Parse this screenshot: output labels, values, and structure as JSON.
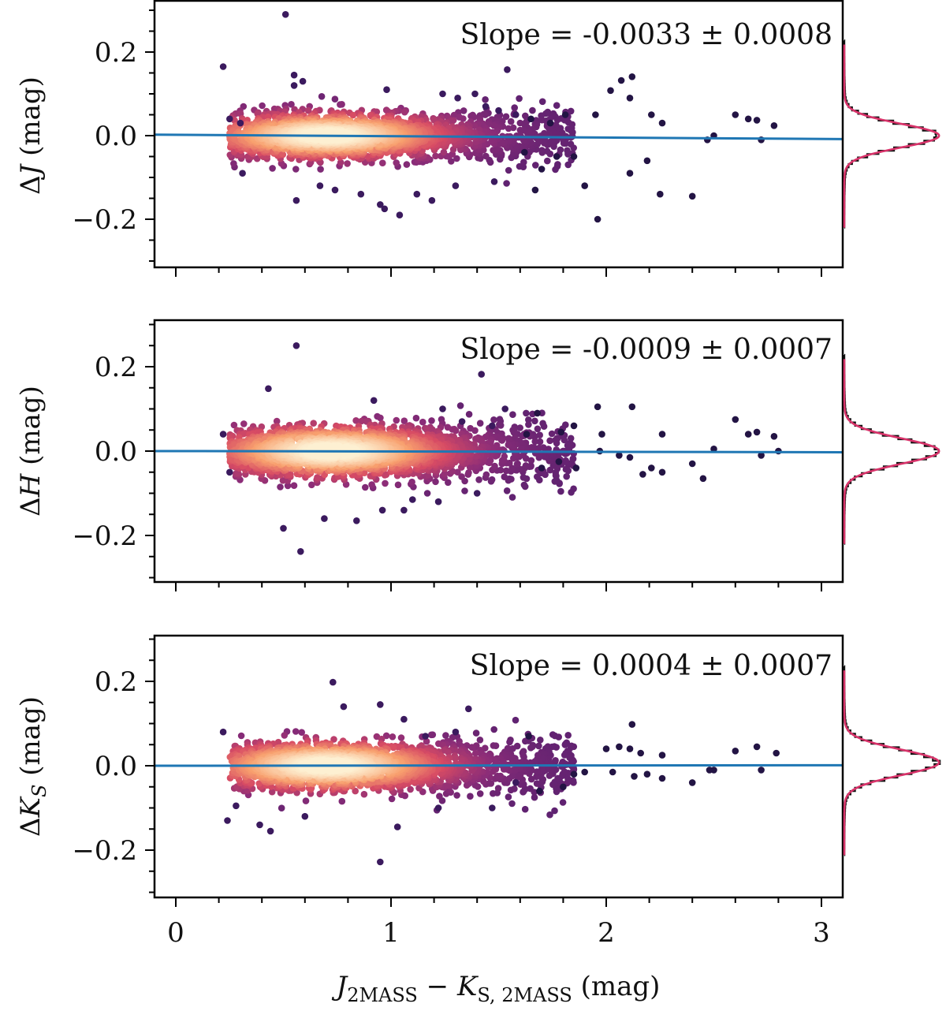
{
  "chart_data": [
    {
      "type": "scatter",
      "panel": "top",
      "ylabel": {
        "prefix": "Δ",
        "var": "J",
        "suffix": " (mag)"
      },
      "annotation": "Slope = -0.0033 ± 0.0008",
      "fit": {
        "slope": -0.0033,
        "intercept": 0.002
      },
      "xlim": [
        -0.1,
        3.1
      ],
      "ylim": [
        -0.32,
        0.32
      ],
      "yticks": [
        0.2,
        0.0,
        -0.2
      ],
      "yticklabels": [
        "0.2",
        "0.0",
        "−0.2"
      ],
      "density": {
        "core_center_x": 0.7,
        "core_sigma_y": 0.025,
        "x_min": 0.22,
        "x_max": 2.8
      },
      "points": [
        [
          0.51,
          0.29
        ],
        [
          0.22,
          0.165
        ],
        [
          0.55,
          0.145
        ],
        [
          0.55,
          0.12
        ],
        [
          0.59,
          0.13
        ],
        [
          1.54,
          0.158
        ],
        [
          2.12,
          0.141
        ],
        [
          2.07,
          0.132
        ],
        [
          2.02,
          0.108
        ],
        [
          2.11,
          0.09
        ],
        [
          1.95,
          0.05
        ],
        [
          2.21,
          0.05
        ],
        [
          2.26,
          0.03
        ],
        [
          2.6,
          0.05
        ],
        [
          2.66,
          0.04
        ],
        [
          2.7,
          0.037
        ],
        [
          2.78,
          0.024
        ],
        [
          2.5,
          0.0
        ],
        [
          2.47,
          -0.01
        ],
        [
          2.72,
          -0.01
        ],
        [
          2.19,
          -0.06
        ],
        [
          2.25,
          -0.14
        ],
        [
          2.4,
          -0.145
        ],
        [
          1.96,
          -0.2
        ],
        [
          2.11,
          -0.09
        ],
        [
          1.9,
          -0.12
        ],
        [
          1.85,
          -0.05
        ],
        [
          1.77,
          -0.05
        ],
        [
          1.7,
          -0.08
        ],
        [
          1.62,
          -0.04
        ],
        [
          1.74,
          0.03
        ],
        [
          1.81,
          0.05
        ],
        [
          1.65,
          0.04
        ],
        [
          1.58,
          0.05
        ],
        [
          1.5,
          0.06
        ],
        [
          1.39,
          0.1
        ],
        [
          1.44,
          0.07
        ],
        [
          1.04,
          -0.19
        ],
        [
          0.95,
          -0.165
        ],
        [
          0.97,
          -0.175
        ],
        [
          0.86,
          -0.14
        ],
        [
          1.12,
          -0.14
        ],
        [
          1.19,
          -0.155
        ],
        [
          1.3,
          -0.12
        ],
        [
          1.48,
          -0.11
        ],
        [
          0.56,
          -0.155
        ],
        [
          0.67,
          -0.12
        ],
        [
          0.74,
          -0.13
        ],
        [
          0.31,
          -0.09
        ],
        [
          0.3,
          0.03
        ],
        [
          0.25,
          0.04
        ],
        [
          1.67,
          -0.13
        ],
        [
          1.24,
          0.1
        ],
        [
          1.31,
          0.09
        ],
        [
          0.98,
          0.11
        ]
      ],
      "hist": {
        "center": 0.0,
        "sigma": 0.028,
        "halfwidth": 0.22
      }
    },
    {
      "type": "scatter",
      "panel": "middle",
      "ylabel": {
        "prefix": "Δ",
        "var": "H",
        "suffix": " (mag)"
      },
      "annotation": "Slope = -0.0009 ± 0.0007",
      "fit": {
        "slope": -0.0009,
        "intercept": 0.0
      },
      "xlim": [
        -0.1,
        3.1
      ],
      "ylim": [
        -0.32,
        0.32
      ],
      "yticks": [
        0.2,
        0.0,
        -0.2
      ],
      "yticklabels": [
        "0.2",
        "0.0",
        "−0.2"
      ],
      "density": {
        "core_center_x": 0.72,
        "core_sigma_y": 0.028,
        "x_min": 0.22,
        "x_max": 2.8
      },
      "points": [
        [
          0.56,
          0.25
        ],
        [
          1.42,
          0.182
        ],
        [
          0.43,
          0.148
        ],
        [
          2.12,
          0.105
        ],
        [
          1.96,
          0.105
        ],
        [
          1.68,
          0.09
        ],
        [
          1.53,
          0.1
        ],
        [
          2.26,
          0.04
        ],
        [
          2.6,
          0.075
        ],
        [
          2.66,
          0.04
        ],
        [
          2.7,
          0.045
        ],
        [
          2.78,
          0.035
        ],
        [
          2.5,
          0.005
        ],
        [
          2.4,
          -0.03
        ],
        [
          2.45,
          -0.065
        ],
        [
          2.72,
          -0.01
        ],
        [
          2.21,
          -0.04
        ],
        [
          2.17,
          -0.055
        ],
        [
          2.26,
          -0.05
        ],
        [
          2.11,
          -0.015
        ],
        [
          2.06,
          -0.01
        ],
        [
          1.97,
          0.0
        ],
        [
          1.98,
          0.04
        ],
        [
          1.85,
          0.06
        ],
        [
          1.79,
          0.045
        ],
        [
          1.86,
          -0.04
        ],
        [
          1.78,
          -0.025
        ],
        [
          1.7,
          -0.04
        ],
        [
          1.63,
          0.04
        ],
        [
          0.58,
          -0.238
        ],
        [
          0.5,
          -0.183
        ],
        [
          0.69,
          -0.16
        ],
        [
          0.84,
          -0.165
        ],
        [
          0.96,
          -0.14
        ],
        [
          1.06,
          -0.14
        ],
        [
          1.1,
          -0.115
        ],
        [
          1.4,
          -0.1
        ],
        [
          1.22,
          -0.12
        ],
        [
          0.25,
          -0.05
        ],
        [
          0.22,
          0.04
        ],
        [
          1.24,
          0.1
        ],
        [
          0.92,
          0.12
        ],
        [
          1.33,
          0.07
        ],
        [
          1.47,
          0.06
        ],
        [
          2.8,
          0.0
        ]
      ],
      "hist": {
        "center": 0.0,
        "sigma": 0.03,
        "halfwidth": 0.22
      }
    },
    {
      "type": "scatter",
      "panel": "bottom",
      "ylabel": {
        "prefix": "Δ",
        "var": "K",
        "sub": "S",
        "suffix": " (mag)"
      },
      "annotation": "Slope = 0.0004 ± 0.0007",
      "fit": {
        "slope": 0.0004,
        "intercept": 0.0
      },
      "xlim": [
        -0.1,
        3.1
      ],
      "ylim": [
        -0.32,
        0.32
      ],
      "yticks": [
        0.2,
        0.0,
        -0.2
      ],
      "yticklabels": [
        "0.2",
        "0.0",
        "−0.2"
      ],
      "xticks": [
        0,
        1,
        2,
        3
      ],
      "xticklabels": [
        "0",
        "1",
        "2",
        "3"
      ],
      "xlabel": {
        "a": "J",
        "asub": "2MASS",
        "mid": " − ",
        "b": "K",
        "bsub": "S, 2MASS",
        "suffix": " (mag)"
      },
      "density": {
        "core_center_x": 0.7,
        "core_sigma_y": 0.027,
        "x_min": 0.22,
        "x_max": 2.8
      },
      "points": [
        [
          0.73,
          0.198
        ],
        [
          0.95,
          0.145
        ],
        [
          0.78,
          0.14
        ],
        [
          1.36,
          0.135
        ],
        [
          2.12,
          0.098
        ],
        [
          1.06,
          0.11
        ],
        [
          0.22,
          0.08
        ],
        [
          1.64,
          0.07
        ],
        [
          2.0,
          0.04
        ],
        [
          2.06,
          0.045
        ],
        [
          2.11,
          0.04
        ],
        [
          2.16,
          0.03
        ],
        [
          2.26,
          0.025
        ],
        [
          2.4,
          -0.04
        ],
        [
          2.5,
          -0.01
        ],
        [
          2.48,
          -0.01
        ],
        [
          2.6,
          0.035
        ],
        [
          2.7,
          0.045
        ],
        [
          2.79,
          0.03
        ],
        [
          2.72,
          -0.01
        ],
        [
          2.26,
          -0.03
        ],
        [
          2.19,
          -0.02
        ],
        [
          2.13,
          -0.025
        ],
        [
          2.03,
          -0.015
        ],
        [
          1.9,
          -0.015
        ],
        [
          1.85,
          -0.02
        ],
        [
          1.8,
          -0.05
        ],
        [
          1.69,
          -0.06
        ],
        [
          1.58,
          -0.04
        ],
        [
          0.95,
          -0.228
        ],
        [
          1.03,
          -0.145
        ],
        [
          0.44,
          -0.155
        ],
        [
          0.39,
          -0.14
        ],
        [
          0.24,
          -0.13
        ],
        [
          0.28,
          -0.095
        ],
        [
          1.47,
          -0.1
        ],
        [
          1.22,
          -0.1
        ],
        [
          1.3,
          0.08
        ],
        [
          1.16,
          0.07
        ],
        [
          0.6,
          -0.12
        ]
      ],
      "hist": {
        "center": 0.008,
        "sigma": 0.03,
        "halfwidth": 0.22
      }
    }
  ]
}
